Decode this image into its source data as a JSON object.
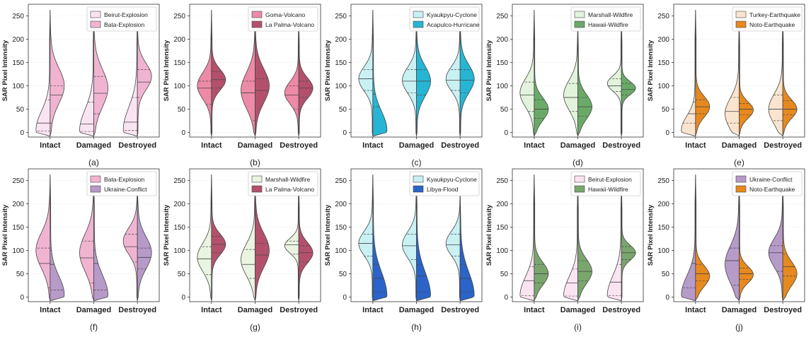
{
  "figure": {
    "ylabel": "SAR Pixel Intensity",
    "categories": [
      "Intact",
      "Damaged",
      "Destroyed"
    ],
    "yticks": [
      0,
      50,
      100,
      150,
      200,
      250
    ],
    "ylim": [
      -10,
      275
    ]
  },
  "chart_data": [
    {
      "type": "violin",
      "panel_label": "(a)",
      "ylabel": "SAR Pixel Intensity",
      "categories": [
        "Intact",
        "Damaged",
        "Destroyed"
      ],
      "ylim": [
        -10,
        275
      ],
      "series": [
        {
          "name": "Beirut-Explosion",
          "color": "#fbe4f2",
          "side": "left",
          "medians": [
            20,
            18,
            22
          ],
          "quartiles": [
            [
              3,
              70
            ],
            [
              2,
              65
            ],
            [
              4,
              75
            ]
          ],
          "peaks": [
            5,
            4,
            5
          ],
          "spread": [
            40,
            45,
            48
          ],
          "maxima": [
            262,
            255,
            250
          ]
        },
        {
          "name": "Bata-Explosion",
          "color": "#f0b4d1",
          "side": "right",
          "medians": [
            80,
            84,
            108
          ],
          "quartiles": [
            [
              20,
              100
            ],
            [
              40,
              120
            ],
            [
              75,
              135
            ]
          ],
          "peaks": [
            100,
            95,
            120
          ],
          "spread": [
            38,
            40,
            28
          ],
          "maxima": [
            262,
            255,
            250
          ]
        }
      ]
    },
    {
      "type": "violin",
      "panel_label": "(b)",
      "ylabel": "SAR Pixel Intensity",
      "categories": [
        "Intact",
        "Damaged",
        "Destroyed"
      ],
      "ylim": [
        -10,
        275
      ],
      "series": [
        {
          "name": "Goma-Volcano",
          "color": "#ec8aa7",
          "side": "left",
          "medians": [
            95,
            85,
            80
          ],
          "quartiles": [
            [
              60,
              110
            ],
            [
              25,
              110
            ],
            [
              50,
              100
            ]
          ],
          "peaks": [
            100,
            90,
            85
          ],
          "spread": [
            28,
            38,
            24
          ],
          "maxima": [
            262,
            258,
            248
          ]
        },
        {
          "name": "La Palma-Volcano",
          "color": "#b3516c",
          "side": "right",
          "medians": [
            113,
            90,
            95
          ],
          "quartiles": [
            [
              95,
              130
            ],
            [
              10,
              115
            ],
            [
              75,
              110
            ]
          ],
          "peaks": [
            113,
            100,
            95
          ],
          "spread": [
            22,
            36,
            22
          ],
          "maxima": [
            262,
            258,
            248
          ]
        }
      ]
    },
    {
      "type": "violin",
      "panel_label": "(c)",
      "ylabel": "SAR Pixel Intensity",
      "categories": [
        "Intact",
        "Damaged",
        "Destroyed"
      ],
      "ylim": [
        -10,
        275
      ],
      "series": [
        {
          "name": "Kyaukpyu-Cyclone",
          "color": "#c9f0f3",
          "side": "left",
          "medians": [
            115,
            110,
            112
          ],
          "quartiles": [
            [
              90,
              135
            ],
            [
              85,
              135
            ],
            [
              90,
              135
            ]
          ],
          "peaks": [
            115,
            112,
            115
          ],
          "spread": [
            26,
            28,
            26
          ],
          "maxima": [
            262,
            256,
            260
          ]
        },
        {
          "name": "Acapulco-Hurricane",
          "color": "#27b5d4",
          "side": "right",
          "medians": [
            82,
            110,
            112
          ],
          "quartiles": [
            [
              55,
              105
            ],
            [
              80,
              135
            ],
            [
              85,
              135
            ]
          ],
          "peaks": [
            5,
            110,
            115
          ],
          "spread": [
            40,
            32,
            30
          ],
          "maxima": [
            262,
            256,
            260
          ]
        }
      ]
    },
    {
      "type": "violin",
      "panel_label": "(d)",
      "ylabel": "SAR Pixel Intensity",
      "categories": [
        "Intact",
        "Damaged",
        "Destroyed"
      ],
      "ylim": [
        -10,
        275
      ],
      "series": [
        {
          "name": "Marshall-Wildfire",
          "color": "#e2f3dc",
          "side": "left",
          "medians": [
            80,
            75,
            100
          ],
          "quartiles": [
            [
              45,
              108
            ],
            [
              45,
              105
            ],
            [
              88,
              115
            ]
          ],
          "peaks": [
            85,
            80,
            105
          ],
          "spread": [
            30,
            32,
            16
          ],
          "maxima": [
            262,
            240,
            250
          ]
        },
        {
          "name": "Hawaii-Wildfire",
          "color": "#6aaa68",
          "side": "right",
          "medians": [
            50,
            55,
            92
          ],
          "quartiles": [
            [
              30,
              70
            ],
            [
              35,
              75
            ],
            [
              80,
              105
            ]
          ],
          "peaks": [
            50,
            55,
            95
          ],
          "spread": [
            24,
            26,
            14
          ],
          "maxima": [
            262,
            240,
            250
          ]
        }
      ]
    },
    {
      "type": "violin",
      "panel_label": "(e)",
      "ylabel": "SAR Pixel Intensity",
      "categories": [
        "Intact",
        "Damaged",
        "Destroyed"
      ],
      "ylim": [
        -10,
        275
      ],
      "series": [
        {
          "name": "Turkey-Earthquake",
          "color": "#fbe4cf",
          "side": "left",
          "medians": [
            40,
            45,
            50
          ],
          "quartiles": [
            [
              20,
              65
            ],
            [
              20,
              75
            ],
            [
              25,
              80
            ]
          ],
          "peaks": [
            5,
            40,
            50
          ],
          "spread": [
            30,
            34,
            32
          ],
          "maxima": [
            262,
            245,
            250
          ]
        },
        {
          "name": "Noto-Earthquake",
          "color": "#e6891e",
          "side": "right",
          "medians": [
            55,
            50,
            50
          ],
          "quartiles": [
            [
              40,
              70
            ],
            [
              38,
              62
            ],
            [
              38,
              68
            ]
          ],
          "peaks": [
            55,
            48,
            50
          ],
          "spread": [
            22,
            18,
            20
          ],
          "maxima": [
            262,
            245,
            250
          ]
        }
      ]
    },
    {
      "type": "violin",
      "panel_label": "(f)",
      "ylabel": "SAR Pixel Intensity",
      "categories": [
        "Intact",
        "Damaged",
        "Destroyed"
      ],
      "ylim": [
        -10,
        275
      ],
      "series": [
        {
          "name": "Bata-Explosion",
          "color": "#f0b4d1",
          "side": "left",
          "medians": [
            72,
            84,
            108
          ],
          "quartiles": [
            [
              20,
              105
            ],
            [
              30,
              120
            ],
            [
              75,
              135
            ]
          ],
          "peaks": [
            100,
            95,
            120
          ],
          "spread": [
            38,
            40,
            28
          ],
          "maxima": [
            262,
            258,
            252
          ]
        },
        {
          "name": "Ukraine-Conflict",
          "color": "#b69ac8",
          "side": "right",
          "medians": [
            70,
            72,
            85
          ],
          "quartiles": [
            [
              15,
              100
            ],
            [
              15,
              100
            ],
            [
              60,
              105
            ]
          ],
          "peaks": [
            5,
            5,
            95
          ],
          "spread": [
            40,
            42,
            34
          ],
          "maxima": [
            262,
            258,
            252
          ]
        }
      ]
    },
    {
      "type": "violin",
      "panel_label": "(g)",
      "ylabel": "SAR Pixel Intensity",
      "categories": [
        "Intact",
        "Damaged",
        "Destroyed"
      ],
      "ylim": [
        -10,
        275
      ],
      "series": [
        {
          "name": "Marshall-Wildfire",
          "color": "#e9f4e1",
          "side": "left",
          "medians": [
            82,
            70,
            112
          ],
          "quartiles": [
            [
              48,
              108
            ],
            [
              40,
              102
            ],
            [
              92,
              120
            ]
          ],
          "peaks": [
            85,
            80,
            110
          ],
          "spread": [
            30,
            34,
            16
          ],
          "maxima": [
            262,
            258,
            250
          ]
        },
        {
          "name": "La Palma-Volcano",
          "color": "#b3516c",
          "side": "right",
          "medians": [
            113,
            90,
            95
          ],
          "quartiles": [
            [
              95,
              130
            ],
            [
              10,
              115
            ],
            [
              75,
              110
            ]
          ],
          "peaks": [
            113,
            100,
            95
          ],
          "spread": [
            22,
            36,
            22
          ],
          "maxima": [
            262,
            258,
            250
          ]
        }
      ]
    },
    {
      "type": "violin",
      "panel_label": "(h)",
      "ylabel": "SAR Pixel Intensity",
      "categories": [
        "Intact",
        "Damaged",
        "Destroyed"
      ],
      "ylim": [
        -10,
        275
      ],
      "series": [
        {
          "name": "Kyaukpyu-Cyclone",
          "color": "#c9f0f3",
          "side": "left",
          "medians": [
            115,
            110,
            112
          ],
          "quartiles": [
            [
              88,
              135
            ],
            [
              80,
              135
            ],
            [
              88,
              135
            ]
          ],
          "peaks": [
            115,
            112,
            115
          ],
          "spread": [
            26,
            28,
            26
          ],
          "maxima": [
            262,
            256,
            230
          ]
        },
        {
          "name": "Libya-Flood",
          "color": "#2b63c8",
          "side": "right",
          "medians": [
            40,
            45,
            40
          ],
          "quartiles": [
            [
              10,
              70
            ],
            [
              10,
              70
            ],
            [
              10,
              70
            ]
          ],
          "peaks": [
            3,
            3,
            3
          ],
          "spread": [
            50,
            50,
            50
          ],
          "maxima": [
            262,
            256,
            230
          ]
        }
      ]
    },
    {
      "type": "violin",
      "panel_label": "(i)",
      "ylabel": "SAR Pixel Intensity",
      "categories": [
        "Intact",
        "Damaged",
        "Destroyed"
      ],
      "ylim": [
        -10,
        275
      ],
      "series": [
        {
          "name": "Beirut-Explosion",
          "color": "#fbe4f2",
          "side": "left",
          "medians": [
            35,
            30,
            32
          ],
          "quartiles": [
            [
              3,
              65
            ],
            [
              2,
              60
            ],
            [
              3,
              70
            ]
          ],
          "peaks": [
            3,
            3,
            3
          ],
          "spread": [
            40,
            40,
            42
          ],
          "maxima": [
            262,
            250,
            248
          ]
        },
        {
          "name": "Hawaii-Wildfire",
          "color": "#7aa66e",
          "side": "right",
          "medians": [
            50,
            55,
            95
          ],
          "quartiles": [
            [
              30,
              70
            ],
            [
              35,
              78
            ],
            [
              80,
              108
            ]
          ],
          "peaks": [
            50,
            55,
            95
          ],
          "spread": [
            24,
            26,
            16
          ],
          "maxima": [
            262,
            250,
            248
          ]
        }
      ]
    },
    {
      "type": "violin",
      "panel_label": "(j)",
      "ylabel": "SAR Pixel Intensity",
      "categories": [
        "Intact",
        "Damaged",
        "Destroyed"
      ],
      "ylim": [
        -10,
        275
      ],
      "series": [
        {
          "name": "Ukraine-Conflict",
          "color": "#b69ac8",
          "side": "left",
          "medians": [
            72,
            78,
            95
          ],
          "quartiles": [
            [
              20,
              100
            ],
            [
              25,
              105
            ],
            [
              55,
              110
            ]
          ],
          "peaks": [
            5,
            70,
            95
          ],
          "spread": [
            40,
            40,
            30
          ],
          "maxima": [
            262,
            255,
            252
          ]
        },
        {
          "name": "Noto-Earthquake",
          "color": "#e6891e",
          "side": "right",
          "medians": [
            50,
            50,
            65
          ],
          "quartiles": [
            [
              35,
              70
            ],
            [
              38,
              62
            ],
            [
              45,
              92
            ]
          ],
          "peaks": [
            45,
            48,
            50
          ],
          "spread": [
            22,
            18,
            26
          ],
          "maxima": [
            262,
            255,
            252
          ]
        }
      ]
    }
  ]
}
